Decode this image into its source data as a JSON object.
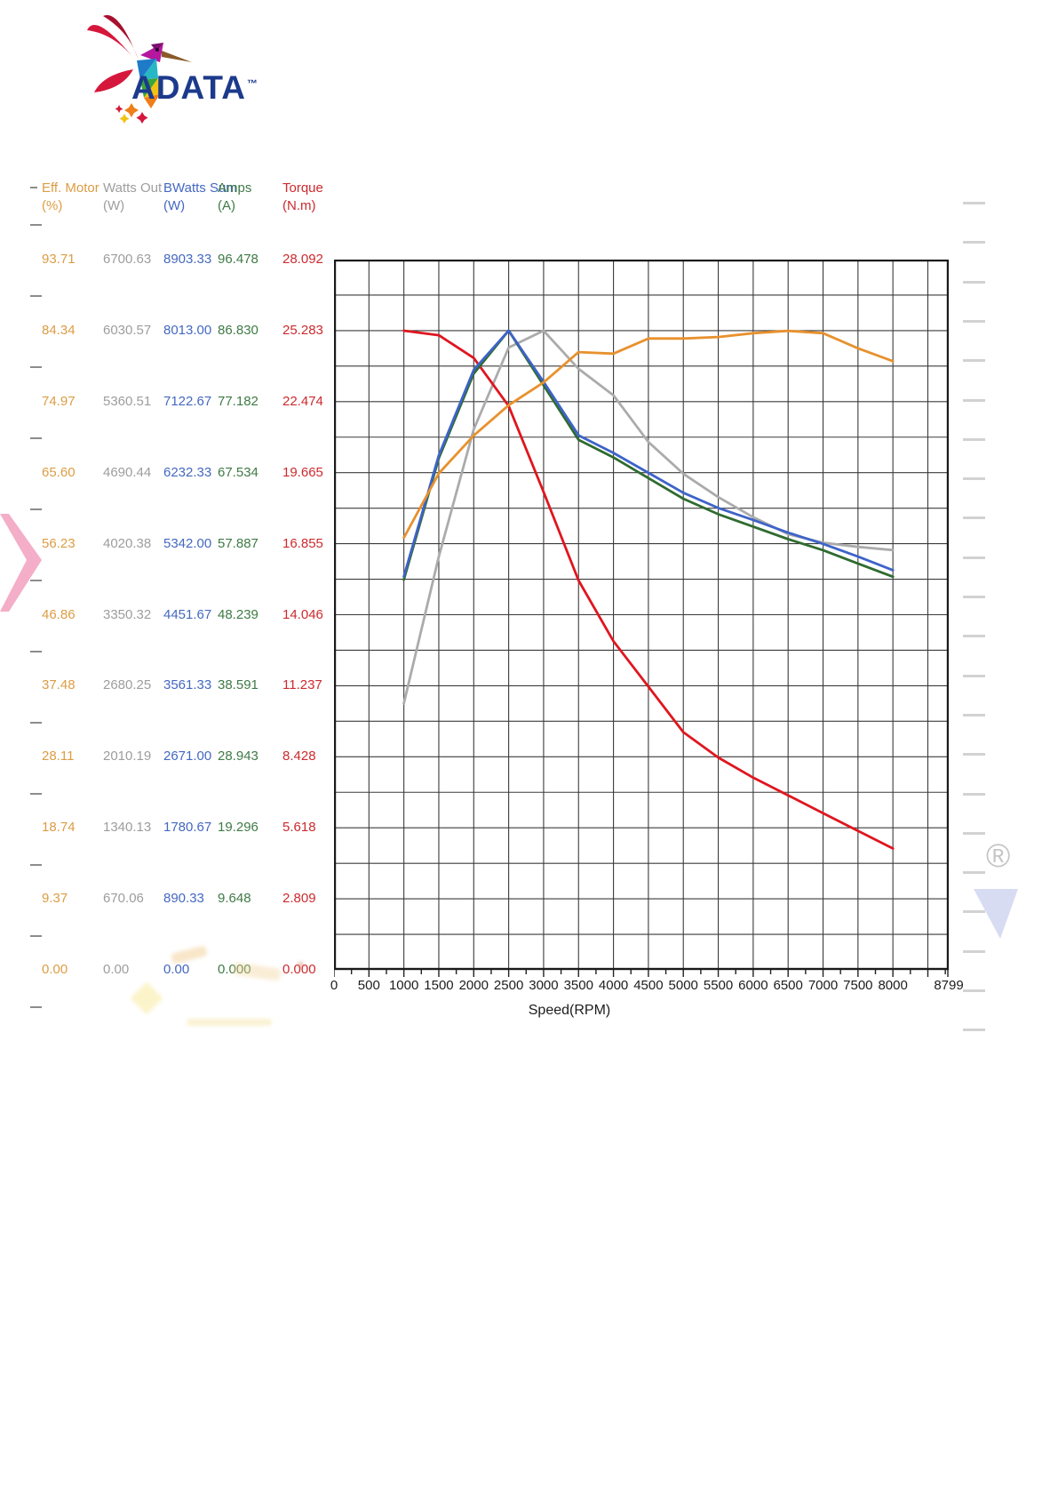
{
  "logo": {
    "brand": "ADATA",
    "trademark": "TM",
    "wordmark_color": "#1c3a8c",
    "icon": "hummingbird-icon"
  },
  "axes_table": {
    "columns": [
      {
        "name": "Eff. Motor",
        "unit": "(%)",
        "color": "#dd9c44",
        "ticks": [
          "93.71",
          "84.34",
          "74.97",
          "65.60",
          "56.23",
          "46.86",
          "37.48",
          "28.11",
          "18.74",
          "9.37",
          "0.00"
        ]
      },
      {
        "name": "Watts Out",
        "unit": "(W)",
        "color": "#9d9d9d",
        "ticks": [
          "6700.63",
          "6030.57",
          "5360.51",
          "4690.44",
          "4020.38",
          "3350.32",
          "2680.25",
          "2010.19",
          "1340.13",
          "670.06",
          "0.00"
        ]
      },
      {
        "name": "BWatts Sum",
        "unit": "(W)",
        "color": "#4468c0",
        "ticks": [
          "8903.33",
          "8013.00",
          "7122.67",
          "6232.33",
          "5342.00",
          "4451.67",
          "3561.33",
          "2671.00",
          "1780.67",
          "890.33",
          "0.00"
        ]
      },
      {
        "name": "Amps",
        "unit": "(A)",
        "color": "#3f7a46",
        "ticks": [
          "96.478",
          "86.830",
          "77.182",
          "67.534",
          "57.887",
          "48.239",
          "38.591",
          "28.943",
          "19.296",
          "9.648",
          "0.000"
        ]
      },
      {
        "name": "Torque",
        "unit": "(N.m)",
        "color": "#cc2a2e",
        "ticks": [
          "28.092",
          "25.283",
          "22.474",
          "19.665",
          "16.855",
          "14.046",
          "11.237",
          "8.428",
          "5.618",
          "2.809",
          "0.000"
        ]
      }
    ]
  },
  "chart_data": {
    "type": "line",
    "title": "",
    "xlabel": "Speed(RPM)",
    "xlim": [
      0,
      8799
    ],
    "grid": true,
    "grid_color": "#3b3b3b",
    "border_color": "#1a1a1a",
    "x_tick_labels": [
      "0",
      "500",
      "1000",
      "1500",
      "2000",
      "2500",
      "3000",
      "3500",
      "4000",
      "4500",
      "5000",
      "5500",
      "6000",
      "6500",
      "7000",
      "7500",
      "8000",
      "8799"
    ],
    "x_tick_values": [
      0,
      500,
      1000,
      1500,
      2000,
      2500,
      3000,
      3500,
      4000,
      4500,
      5000,
      5500,
      6000,
      6500,
      7000,
      7500,
      8000,
      8799
    ],
    "y_gridline_rows": 20,
    "x": [
      1000,
      1500,
      2000,
      2500,
      3000,
      3500,
      4000,
      4500,
      5000,
      5500,
      6000,
      6500,
      7000,
      7500,
      8000
    ],
    "series": [
      {
        "name": "Watts Out (W)",
        "color": "#ababab",
        "full_scale": 6700.63,
        "values": [
          2513,
          3900,
          5100,
          5870,
          6030,
          5670,
          5420,
          4980,
          4680,
          4460,
          4270,
          4110,
          4030,
          3990,
          3960
        ]
      },
      {
        "name": "Torque (N.m)",
        "color": "#e0161f",
        "full_scale": 28.092,
        "values": [
          25.28,
          25.1,
          24.2,
          22.3,
          18.9,
          15.4,
          13.0,
          11.2,
          9.4,
          8.4,
          7.6,
          6.9,
          6.2,
          5.5,
          4.8
        ]
      },
      {
        "name": "Amps (A)",
        "color": "#2f6b2f",
        "full_scale": 96.478,
        "values": [
          53.0,
          69.5,
          81.0,
          86.83,
          79.4,
          72.0,
          69.6,
          66.8,
          64.0,
          61.9,
          60.2,
          58.5,
          57.0,
          55.2,
          53.4
        ]
      },
      {
        "name": "BWatts Sum (W)",
        "color": "#3e63c8",
        "full_scale": 8903.33,
        "values": [
          4930,
          6450,
          7520,
          8013,
          7370,
          6700,
          6480,
          6230,
          5980,
          5790,
          5640,
          5480,
          5340,
          5180,
          5010
        ]
      },
      {
        "name": "Eff. Motor (%)",
        "color": "#e8912d",
        "full_scale": 93.71,
        "values": [
          57.0,
          65.5,
          70.5,
          74.5,
          77.5,
          81.5,
          81.3,
          83.3,
          83.3,
          83.5,
          84.0,
          84.3,
          84.0,
          82.0,
          80.3
        ]
      }
    ]
  },
  "annotations": {
    "registered_mark": "®"
  }
}
